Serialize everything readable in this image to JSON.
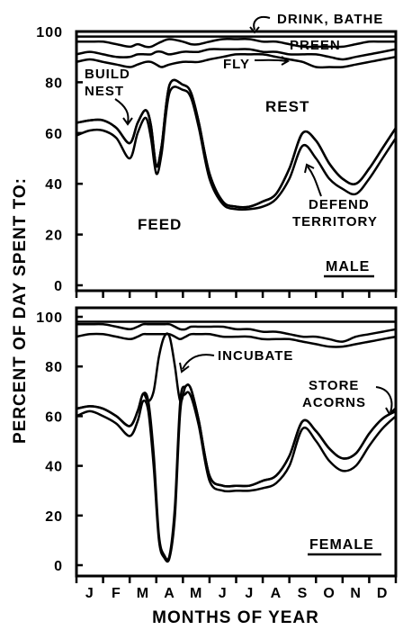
{
  "ylabel": "PERCENT OF DAY SPENT TO:",
  "xlabel": "MONTHS OF YEAR",
  "month_ticks": [
    "J",
    "F",
    "M",
    "A",
    "M",
    "J",
    "J",
    "A",
    "S",
    "O",
    "N",
    "D"
  ],
  "chart_data": [
    {
      "type": "area",
      "panel_label": "MALE",
      "ylim": [
        0,
        100
      ],
      "yticks": [
        0,
        20,
        40,
        60,
        80,
        100
      ],
      "grid": false,
      "x_unit": "month",
      "xlim": [
        0,
        12
      ],
      "x": [
        0.0,
        0.5,
        1.0,
        1.5,
        2.0,
        2.3,
        2.6,
        2.8,
        3.0,
        3.2,
        3.5,
        4.0,
        4.3,
        4.6,
        5.0,
        5.5,
        6.0,
        6.5,
        7.0,
        7.5,
        8.0,
        8.5,
        9.0,
        9.5,
        10.0,
        10.5,
        11.0,
        11.5,
        12.0
      ],
      "series": [
        {
          "name": "FEED",
          "values": [
            59,
            61,
            61,
            58,
            50,
            60,
            66,
            58,
            44,
            52,
            76,
            77,
            74,
            62,
            42,
            32,
            30,
            30,
            31,
            34,
            42,
            55,
            50,
            42,
            38,
            36,
            42,
            50,
            58
          ]
        },
        {
          "name": "BUILD NEST",
          "values": [
            64,
            65,
            65,
            62,
            56,
            64,
            69,
            63,
            47,
            55,
            79,
            79,
            76,
            64,
            44,
            33,
            31,
            31,
            33,
            36,
            46,
            60,
            57,
            48,
            42,
            40,
            46,
            54,
            62
          ]
        },
        {
          "name": "DEFEND TERRITORY",
          "values": [
            64,
            65,
            65,
            62,
            56,
            64,
            69,
            63,
            47,
            55,
            79,
            79,
            76,
            64,
            44,
            33,
            31,
            31,
            33,
            36,
            46,
            60,
            57,
            48,
            42,
            40,
            46,
            54,
            62
          ]
        },
        {
          "name": "REST",
          "values": [
            88,
            89,
            88,
            87,
            86,
            87,
            88,
            88,
            87,
            86,
            87,
            88,
            88,
            88,
            89,
            90,
            91,
            91,
            91,
            90,
            89,
            88,
            86,
            86,
            86,
            87,
            88,
            89,
            90
          ]
        },
        {
          "name": "FLY",
          "values": [
            91,
            92,
            91,
            90,
            90,
            91,
            91,
            91,
            92,
            92,
            91,
            92,
            92,
            92,
            93,
            93,
            93,
            93,
            92,
            92,
            91,
            91,
            91,
            90,
            89,
            90,
            91,
            92,
            93
          ]
        },
        {
          "name": "PREEN",
          "values": [
            96,
            96,
            96,
            95,
            94,
            95,
            94,
            94,
            95,
            96,
            97,
            96,
            95,
            95,
            96,
            97,
            97,
            97,
            96,
            96,
            95,
            94,
            94,
            94,
            94,
            95,
            96,
            96,
            96
          ]
        },
        {
          "name": "DRINK, BATHE",
          "values": [
            98,
            98,
            98,
            98,
            98,
            98,
            98,
            98,
            98,
            98,
            98,
            98,
            98,
            98,
            98,
            98,
            98,
            98,
            98,
            98,
            98,
            98,
            98,
            98,
            98,
            98,
            98,
            98,
            98
          ]
        }
      ],
      "annotations": [
        "DRINK, BATHE",
        "PREEN",
        "FLY",
        "BUILD",
        "NEST",
        "REST",
        "FEED",
        "DEFEND",
        "TERRITORY"
      ]
    },
    {
      "type": "area",
      "panel_label": "FEMALE",
      "ylim": [
        0,
        100
      ],
      "yticks": [
        0,
        20,
        40,
        60,
        80,
        100
      ],
      "grid": false,
      "x_unit": "month",
      "xlim": [
        0,
        12
      ],
      "x": [
        0.0,
        0.5,
        1.0,
        1.5,
        2.0,
        2.3,
        2.5,
        2.7,
        2.9,
        3.1,
        3.3,
        3.5,
        3.7,
        3.9,
        4.1,
        4.3,
        4.6,
        5.0,
        5.5,
        6.0,
        6.5,
        7.0,
        7.5,
        8.0,
        8.5,
        9.0,
        9.5,
        10.0,
        10.5,
        11.0,
        11.5,
        12.0
      ],
      "series": [
        {
          "name": "FEED",
          "values": [
            60,
            62,
            60,
            57,
            52,
            58,
            66,
            62,
            40,
            10,
            3,
            3,
            20,
            62,
            69,
            68,
            56,
            34,
            30,
            30,
            30,
            31,
            33,
            40,
            55,
            50,
            42,
            38,
            40,
            48,
            55,
            60
          ]
        },
        {
          "name": "STORE ACORNS",
          "values": [
            63,
            64,
            63,
            60,
            56,
            62,
            69,
            66,
            45,
            12,
            4,
            4,
            24,
            66,
            72,
            71,
            58,
            36,
            32,
            32,
            32,
            34,
            36,
            44,
            58,
            54,
            47,
            43,
            45,
            53,
            59,
            62
          ]
        },
        {
          "name": "INCUBATE",
          "values": [
            63,
            64,
            63,
            60,
            56,
            62,
            69,
            66,
            70,
            84,
            92,
            92,
            80,
            66,
            72,
            71,
            58,
            36,
            32,
            32,
            32,
            34,
            36,
            44,
            58,
            54,
            47,
            43,
            45,
            53,
            59,
            62
          ]
        },
        {
          "name": "REST",
          "values": [
            92,
            93,
            93,
            92,
            91,
            92,
            93,
            93,
            93,
            93,
            93,
            93,
            92,
            91,
            92,
            93,
            93,
            93,
            92,
            92,
            92,
            91,
            91,
            91,
            90,
            89,
            88,
            88,
            89,
            90,
            91,
            92
          ]
        },
        {
          "name": "FLY",
          "values": [
            97,
            97,
            97,
            96,
            95,
            96,
            97,
            97,
            97,
            97,
            97,
            97,
            96,
            95,
            95,
            96,
            96,
            96,
            96,
            95,
            95,
            94,
            94,
            93,
            92,
            92,
            91,
            90,
            92,
            93,
            94,
            95
          ]
        },
        {
          "name": "DRINK, BATHE",
          "values": [
            98,
            98,
            98,
            98,
            98,
            98,
            98,
            98,
            98,
            98,
            98,
            98,
            98,
            98,
            98,
            98,
            98,
            98,
            98,
            98,
            98,
            98,
            98,
            98,
            98,
            98,
            98,
            98,
            98,
            98,
            98,
            98
          ]
        }
      ],
      "annotations": [
        "INCUBATE",
        "STORE",
        "ACORNS"
      ]
    }
  ]
}
